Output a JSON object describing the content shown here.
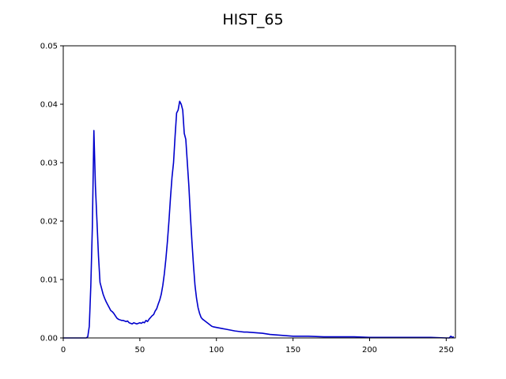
{
  "chart_data": {
    "type": "line",
    "title": "HIST_65",
    "xlabel": "",
    "ylabel": "",
    "xlim": [
      0,
      256
    ],
    "ylim": [
      0,
      0.05
    ],
    "xticks": [
      0,
      50,
      100,
      150,
      200,
      250
    ],
    "xtick_labels": [
      "0",
      "50",
      "100",
      "150",
      "200",
      "250"
    ],
    "yticks": [
      0,
      0.01,
      0.02,
      0.03,
      0.04,
      0.05
    ],
    "ytick_labels": [
      "0.00",
      "0.01",
      "0.02",
      "0.03",
      "0.04",
      "0.05"
    ],
    "grid": false,
    "series": [
      {
        "color": "#0000cc",
        "points": [
          [
            0,
            0
          ],
          [
            5,
            0
          ],
          [
            10,
            0
          ],
          [
            14,
            0
          ],
          [
            15,
            0
          ],
          [
            16,
            0.0002
          ],
          [
            17,
            0.002
          ],
          [
            18,
            0.009
          ],
          [
            19,
            0.019
          ],
          [
            20,
            0.0355
          ],
          [
            21,
            0.026
          ],
          [
            22,
            0.02
          ],
          [
            23,
            0.014
          ],
          [
            24,
            0.0095
          ],
          [
            25,
            0.0085
          ],
          [
            26,
            0.0075
          ],
          [
            27,
            0.0068
          ],
          [
            28,
            0.0062
          ],
          [
            29,
            0.0057
          ],
          [
            30,
            0.0052
          ],
          [
            31,
            0.0047
          ],
          [
            32,
            0.0045
          ],
          [
            33,
            0.0042
          ],
          [
            34,
            0.0038
          ],
          [
            35,
            0.0034
          ],
          [
            36,
            0.0032
          ],
          [
            37,
            0.0031
          ],
          [
            38,
            0.003
          ],
          [
            39,
            0.003
          ],
          [
            40,
            0.0029
          ],
          [
            41,
            0.0028
          ],
          [
            42,
            0.0029
          ],
          [
            43,
            0.0026
          ],
          [
            44,
            0.0025
          ],
          [
            45,
            0.0024
          ],
          [
            46,
            0.0026
          ],
          [
            47,
            0.0025
          ],
          [
            48,
            0.0024
          ],
          [
            49,
            0.0025
          ],
          [
            50,
            0.0026
          ],
          [
            51,
            0.0025
          ],
          [
            52,
            0.0027
          ],
          [
            53,
            0.0026
          ],
          [
            54,
            0.003
          ],
          [
            55,
            0.0028
          ],
          [
            56,
            0.0032
          ],
          [
            57,
            0.0035
          ],
          [
            58,
            0.0038
          ],
          [
            59,
            0.004
          ],
          [
            60,
            0.0046
          ],
          [
            61,
            0.005
          ],
          [
            62,
            0.0058
          ],
          [
            63,
            0.0065
          ],
          [
            64,
            0.0075
          ],
          [
            65,
            0.009
          ],
          [
            66,
            0.011
          ],
          [
            67,
            0.0135
          ],
          [
            68,
            0.0165
          ],
          [
            69,
            0.02
          ],
          [
            70,
            0.024
          ],
          [
            71,
            0.0275
          ],
          [
            72,
            0.03
          ],
          [
            73,
            0.0345
          ],
          [
            74,
            0.0385
          ],
          [
            75,
            0.039
          ],
          [
            76,
            0.0405
          ],
          [
            77,
            0.04
          ],
          [
            78,
            0.039
          ],
          [
            79,
            0.035
          ],
          [
            80,
            0.034
          ],
          [
            81,
            0.03
          ],
          [
            82,
            0.026
          ],
          [
            83,
            0.021
          ],
          [
            84,
            0.0165
          ],
          [
            85,
            0.0125
          ],
          [
            86,
            0.009
          ],
          [
            87,
            0.0068
          ],
          [
            88,
            0.0052
          ],
          [
            89,
            0.0042
          ],
          [
            90,
            0.0035
          ],
          [
            91,
            0.0032
          ],
          [
            92,
            0.003
          ],
          [
            93,
            0.0028
          ],
          [
            94,
            0.0026
          ],
          [
            95,
            0.0024
          ],
          [
            96,
            0.0022
          ],
          [
            97,
            0.002
          ],
          [
            98,
            0.0019
          ],
          [
            100,
            0.0018
          ],
          [
            102,
            0.0017
          ],
          [
            104,
            0.0016
          ],
          [
            106,
            0.0015
          ],
          [
            108,
            0.0014
          ],
          [
            110,
            0.0013
          ],
          [
            112,
            0.0012
          ],
          [
            115,
            0.0011
          ],
          [
            118,
            0.001
          ],
          [
            120,
            0.001
          ],
          [
            125,
            0.0009
          ],
          [
            130,
            0.0008
          ],
          [
            135,
            0.0006
          ],
          [
            140,
            0.0005
          ],
          [
            145,
            0.0004
          ],
          [
            150,
            0.0003
          ],
          [
            160,
            0.0003
          ],
          [
            170,
            0.0002
          ],
          [
            180,
            0.0002
          ],
          [
            190,
            0.0002
          ],
          [
            200,
            0.0001
          ],
          [
            210,
            0.0001
          ],
          [
            220,
            0.0001
          ],
          [
            230,
            0.0001
          ],
          [
            240,
            0.0001
          ],
          [
            250,
            0
          ],
          [
            252,
            0
          ],
          [
            253,
            0.0003
          ],
          [
            254,
            0.0001
          ],
          [
            255,
            0.0002
          ]
        ]
      }
    ]
  }
}
